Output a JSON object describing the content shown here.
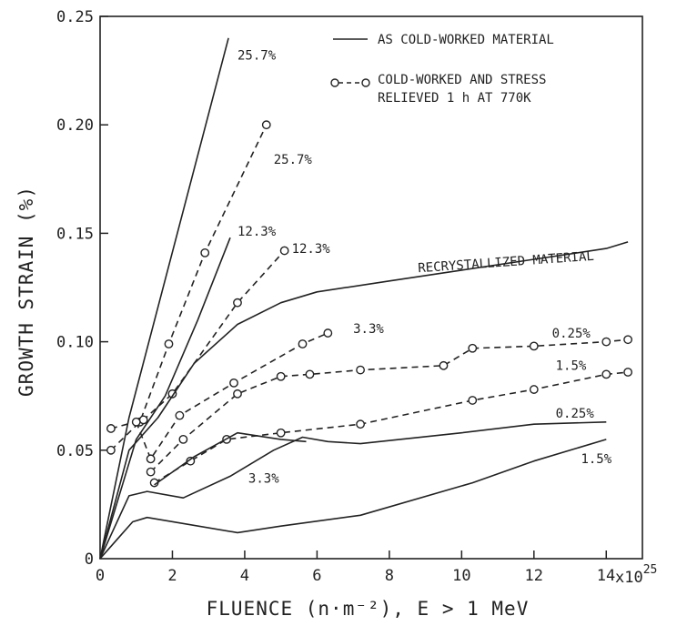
{
  "chart_data": {
    "type": "line",
    "title": "",
    "xlabel": "FLUENCE (n·m⁻²), E > 1 MeV",
    "ylabel": "GROWTH STRAIN (%)",
    "x_multiplier_label": "x10",
    "x_multiplier_exp": "25",
    "xlim": [
      0,
      15
    ],
    "ylim": [
      0,
      0.25
    ],
    "x_ticks": [
      0,
      2,
      4,
      6,
      8,
      10,
      12,
      14
    ],
    "x_tick_labels": [
      "0",
      "2",
      "4",
      "6",
      "8",
      "10",
      "12",
      "14"
    ],
    "y_ticks": [
      0,
      0.05,
      0.1,
      0.15,
      0.2,
      0.25
    ],
    "y_tick_labels": [
      "0",
      "0.05",
      "0.10",
      "0.15",
      "0.20",
      "0.25"
    ],
    "grid": false,
    "legend": {
      "position": "top-right",
      "entries": [
        {
          "label": "AS COLD-WORKED MATERIAL",
          "style": "solid"
        },
        {
          "label": "COLD-WORKED AND STRESS",
          "label2": "RELIEVED 1 h AT 770K",
          "style": "dashed-circle"
        }
      ]
    },
    "series": [
      {
        "style": "solid",
        "points": [
          [
            0,
            0
          ],
          [
            0.8,
            0.065
          ],
          [
            3.55,
            0.24
          ]
        ]
      },
      {
        "style": "dashed",
        "markers": true,
        "points": [
          [
            0.3,
            0.05
          ],
          [
            1.1,
            0.063
          ],
          [
            1.9,
            0.099
          ],
          [
            2.9,
            0.141
          ],
          [
            4.6,
            0.2
          ]
        ]
      },
      {
        "style": "solid",
        "points": [
          [
            0,
            0
          ],
          [
            1.0,
            0.055
          ],
          [
            1.8,
            0.075
          ],
          [
            2.7,
            0.11
          ],
          [
            3.6,
            0.148
          ]
        ]
      },
      {
        "style": "dashed",
        "markers": true,
        "points": [
          [
            0.3,
            0.06
          ],
          [
            1.2,
            0.064
          ],
          [
            2.0,
            0.076
          ],
          [
            3.8,
            0.118
          ],
          [
            5.1,
            0.142
          ]
        ]
      },
      {
        "style": "solid",
        "points": [
          [
            0,
            0
          ],
          [
            0.8,
            0.05
          ],
          [
            1.6,
            0.065
          ],
          [
            2.6,
            0.09
          ],
          [
            3.8,
            0.108
          ],
          [
            5.0,
            0.118
          ],
          [
            6.0,
            0.123
          ],
          [
            8.0,
            0.128
          ],
          [
            10,
            0.133
          ],
          [
            12,
            0.138
          ],
          [
            14,
            0.143
          ],
          [
            14.6,
            0.146
          ]
        ]
      },
      {
        "style": "dashed",
        "markers": true,
        "points": [
          [
            1.0,
            0.063
          ],
          [
            1.4,
            0.046
          ],
          [
            2.2,
            0.066
          ],
          [
            3.7,
            0.081
          ],
          [
            5.6,
            0.099
          ],
          [
            6.3,
            0.104
          ]
        ]
      },
      {
        "style": "dashed",
        "markers": true,
        "points": [
          [
            1.4,
            0.04
          ],
          [
            2.3,
            0.055
          ],
          [
            3.8,
            0.076
          ],
          [
            5.0,
            0.084
          ],
          [
            5.8,
            0.085
          ],
          [
            7.2,
            0.087
          ],
          [
            9.5,
            0.089
          ],
          [
            10.3,
            0.097
          ],
          [
            12.0,
            0.098
          ],
          [
            14.0,
            0.1
          ],
          [
            14.6,
            0.101
          ]
        ]
      },
      {
        "style": "dashed",
        "markers": true,
        "points": [
          [
            1.5,
            0.035
          ],
          [
            2.5,
            0.045
          ],
          [
            3.5,
            0.055
          ],
          [
            5.0,
            0.058
          ],
          [
            7.2,
            0.062
          ],
          [
            10.3,
            0.073
          ],
          [
            12.0,
            0.078
          ],
          [
            14.0,
            0.085
          ],
          [
            14.6,
            0.086
          ]
        ]
      },
      {
        "style": "solid",
        "points": [
          [
            0,
            0
          ],
          [
            0.8,
            0.029
          ],
          [
            1.3,
            0.031
          ],
          [
            2.3,
            0.028
          ],
          [
            3.6,
            0.038
          ],
          [
            4.8,
            0.05
          ],
          [
            5.6,
            0.056
          ],
          [
            6.3,
            0.054
          ],
          [
            7.2,
            0.053
          ],
          [
            10,
            0.058
          ],
          [
            12,
            0.062
          ],
          [
            14.0,
            0.063
          ]
        ]
      },
      {
        "style": "solid",
        "points": [
          [
            1.5,
            0.034
          ],
          [
            2.6,
            0.047
          ],
          [
            3.8,
            0.058
          ],
          [
            5.0,
            0.055
          ],
          [
            5.7,
            0.054
          ]
        ]
      },
      {
        "style": "solid",
        "points": [
          [
            0,
            0
          ],
          [
            0.9,
            0.017
          ],
          [
            1.3,
            0.019
          ],
          [
            3.8,
            0.012
          ],
          [
            5.0,
            0.015
          ],
          [
            7.2,
            0.02
          ],
          [
            10.3,
            0.035
          ],
          [
            12.0,
            0.045
          ],
          [
            14.0,
            0.055
          ]
        ]
      }
    ],
    "annotations": [
      {
        "text": "25.7%",
        "x": 3.8,
        "y": 0.23
      },
      {
        "text": "25.7%",
        "x": 4.8,
        "y": 0.182
      },
      {
        "text": "12.3%",
        "x": 3.8,
        "y": 0.149
      },
      {
        "text": "12.3%",
        "x": 5.3,
        "y": 0.141
      },
      {
        "text": "RECRYSTALLIZED MATERIAL",
        "x": 8.8,
        "y": 0.132,
        "rotate": -4
      },
      {
        "text": "3.3%",
        "x": 7.0,
        "y": 0.104
      },
      {
        "text": "0.25%",
        "x": 12.5,
        "y": 0.102
      },
      {
        "text": "1.5%",
        "x": 12.6,
        "y": 0.087
      },
      {
        "text": "0.25%",
        "x": 12.6,
        "y": 0.065
      },
      {
        "text": "3.3%",
        "x": 4.1,
        "y": 0.035
      },
      {
        "text": "1.5%",
        "x": 13.3,
        "y": 0.044
      }
    ]
  }
}
